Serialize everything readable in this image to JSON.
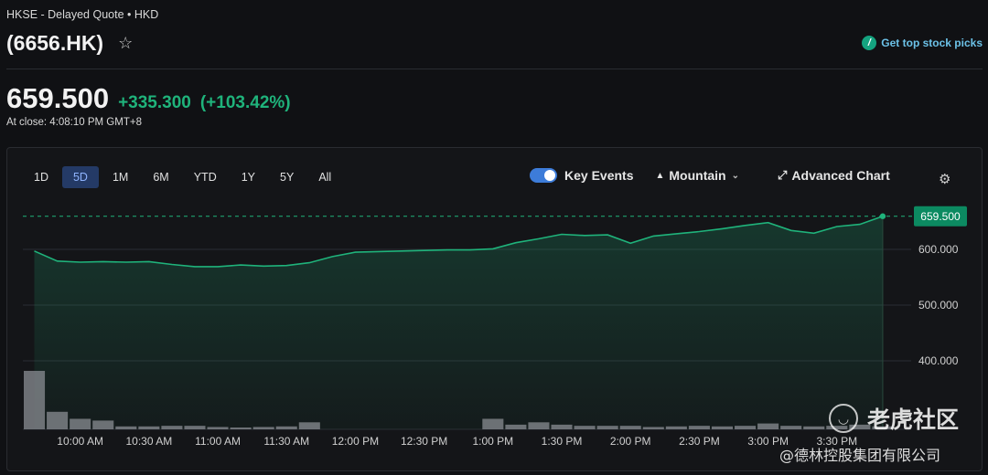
{
  "header": {
    "exchange_line": "HKSE - Delayed Quote • HKD",
    "ticker": "(6656.HK)",
    "star_icon": "☆",
    "top_picks_label": "Get top stock picks"
  },
  "quote": {
    "price": "659.500",
    "change": "+335.300",
    "change_percent": "(+103.42%)",
    "close_time": "At close: 4:08:10 PM GMT+8"
  },
  "toolbar": {
    "ranges": [
      "1D",
      "5D",
      "1M",
      "6M",
      "YTD",
      "1Y",
      "5Y",
      "All"
    ],
    "active_range": "5D",
    "key_events_label": "Key Events",
    "key_events_on": true,
    "chart_type_label": "Mountain",
    "advanced_label": "Advanced Chart"
  },
  "colors": {
    "line": "#1fb37b",
    "up_text": "#1fb37b",
    "price_tag_bg": "#0c8a61",
    "volume_bar": "#8a8d93",
    "active_tab_bg": "#243a66"
  },
  "watermark": {
    "brand": "老虎社区",
    "company": "@德林控股集团有限公司"
  },
  "chart_data": {
    "type": "area",
    "title": "",
    "xlabel": "",
    "ylabel": "",
    "ylim": [
      300,
      700
    ],
    "y_ticks": [
      "600.000",
      "500.000",
      "400.000"
    ],
    "y_tick_values": [
      600,
      500,
      400
    ],
    "current_price_label": "659.500",
    "current_price": 659.5,
    "x_tick_labels": [
      "10:00 AM",
      "10:30 AM",
      "11:00 AM",
      "11:30 AM",
      "12:00 PM",
      "12:30 PM",
      "1:00 PM",
      "1:30 PM",
      "2:00 PM",
      "2:30 PM",
      "3:00 PM",
      "3:30 PM"
    ],
    "x_tick_minutes": [
      600,
      630,
      660,
      690,
      720,
      750,
      780,
      810,
      840,
      870,
      900,
      930
    ],
    "x_minutes": [
      580,
      590,
      600,
      610,
      620,
      630,
      640,
      650,
      660,
      670,
      680,
      690,
      700,
      710,
      720,
      730,
      740,
      750,
      760,
      770,
      780,
      790,
      800,
      810,
      820,
      830,
      840,
      850,
      860,
      870,
      880,
      890,
      900,
      910,
      920,
      930,
      940,
      950
    ],
    "price": [
      597,
      579,
      577,
      578,
      577,
      578,
      573,
      569,
      569,
      572,
      570,
      571,
      576,
      587,
      595,
      596,
      597,
      598,
      599,
      599,
      601,
      612,
      619,
      627,
      625,
      626,
      611,
      624,
      628,
      632,
      637,
      643,
      648,
      634,
      629,
      641,
      645,
      659.5
    ],
    "volume_relative": [
      1.0,
      0.3,
      0.18,
      0.15,
      0.05,
      0.05,
      0.06,
      0.06,
      0.04,
      0.03,
      0.04,
      0.05,
      0.12,
      0.0,
      0.0,
      0.0,
      0.0,
      0.0,
      0.0,
      0.0,
      0.18,
      0.08,
      0.12,
      0.08,
      0.06,
      0.06,
      0.06,
      0.04,
      0.05,
      0.06,
      0.05,
      0.06,
      0.1,
      0.06,
      0.05,
      0.06,
      0.08,
      0.05
    ],
    "grid": true,
    "reference_line": "dashed at current price"
  }
}
